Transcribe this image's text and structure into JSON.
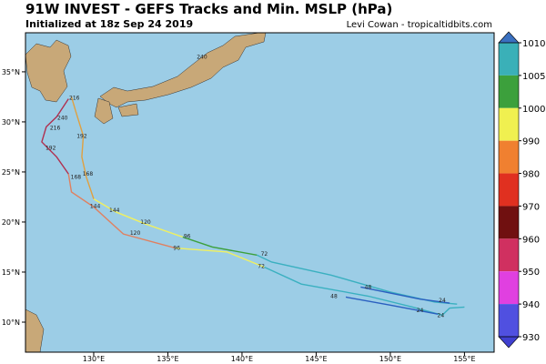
{
  "header": {
    "title": "91W INVEST - GEFS Tracks and Min. MSLP (hPa)",
    "subtitle": "Initialized at 18z Sep 24 2019",
    "credit": "Levi Cowan - tropicaltidbits.com"
  },
  "map": {
    "xlim": [
      125.4,
      157
    ],
    "ylim": [
      7,
      38.9
    ],
    "xticks": [
      {
        "value": 130,
        "label": "130°E"
      },
      {
        "value": 135,
        "label": "135°E"
      },
      {
        "value": 140,
        "label": "140°E"
      },
      {
        "value": 145,
        "label": "145°E"
      },
      {
        "value": 150,
        "label": "150°E"
      },
      {
        "value": 155,
        "label": "155°E"
      }
    ],
    "yticks": [
      {
        "value": 10,
        "label": "10°N"
      },
      {
        "value": 15,
        "label": "15°N"
      },
      {
        "value": 20,
        "label": "20°N"
      },
      {
        "value": 25,
        "label": "25°N"
      },
      {
        "value": 30,
        "label": "30°N"
      },
      {
        "value": 35,
        "label": "35°N"
      }
    ],
    "tracks": [
      {
        "segments": [
          {
            "color": "#3ab0c0",
            "lon": [
              154.5,
              153,
              150,
              146,
              142,
              141
            ],
            "lat": [
              11.8,
              12,
              13,
              14.7,
              16,
              16.7
            ]
          },
          {
            "color": "#2a5fc0",
            "lon": [
              154,
              152,
              150,
              148
            ],
            "lat": [
              11.9,
              12.3,
              12.9,
              13.5
            ]
          },
          {
            "color": "#3ca03c",
            "lon": [
              141,
              138,
              136
            ],
            "lat": [
              16.7,
              17.5,
              18.5
            ]
          },
          {
            "color": "#f0f060",
            "lon": [
              136,
              133.5,
              131.5,
              130
            ],
            "lat": [
              18.5,
              19.8,
              21,
              22.3
            ]
          },
          {
            "color": "#e0a040",
            "lon": [
              130,
              129.5,
              129.2,
              129.3,
              128.8,
              128.5
            ],
            "lat": [
              22.3,
              24.5,
              26.5,
              28.6,
              31,
              32.5
            ]
          }
        ]
      },
      {
        "segments": [
          {
            "color": "#3ab0c0",
            "lon": [
              155,
              154,
              153.5,
              151.5,
              148.5,
              144,
              141.5
            ],
            "lat": [
              11.5,
              11.4,
              10.7,
              11.5,
              12.6,
              13.8,
              15.5
            ]
          },
          {
            "color": "#2a5fc0",
            "lon": [
              153.2,
              150,
              147
            ],
            "lat": [
              10.8,
              11.7,
              12.5
            ]
          },
          {
            "color": "#f0f060",
            "lon": [
              141.5,
              139,
              135.5
            ],
            "lat": [
              15.5,
              17,
              17.4
            ]
          },
          {
            "color": "#e08060",
            "lon": [
              135.5,
              132,
              130,
              128.5,
              128.3
            ],
            "lat": [
              17.4,
              18.8,
              21.5,
              23,
              24.8
            ]
          },
          {
            "color": "#b03050",
            "lon": [
              128.3,
              127.5,
              126.5,
              126.8,
              127.5,
              128.3
            ],
            "lat": [
              24.8,
              26.5,
              28,
              29.5,
              30.5,
              32.3
            ]
          }
        ]
      }
    ],
    "hour_labels": [
      {
        "text": "24",
        "lon": 153.5,
        "lat": 12.2
      },
      {
        "text": "24",
        "lon": 153.4,
        "lat": 10.7
      },
      {
        "text": "24",
        "lon": 152,
        "lat": 11.2
      },
      {
        "text": "48",
        "lon": 148.5,
        "lat": 13.5
      },
      {
        "text": "48",
        "lon": 146.2,
        "lat": 12.6
      },
      {
        "text": "72",
        "lon": 141.5,
        "lat": 16.8
      },
      {
        "text": "72",
        "lon": 141.3,
        "lat": 15.6
      },
      {
        "text": "96",
        "lon": 136.3,
        "lat": 18.6
      },
      {
        "text": "96",
        "lon": 135.6,
        "lat": 17.4
      },
      {
        "text": "120",
        "lon": 133.5,
        "lat": 20
      },
      {
        "text": "120",
        "lon": 132.8,
        "lat": 18.9
      },
      {
        "text": "144",
        "lon": 131.4,
        "lat": 21.2
      },
      {
        "text": "144",
        "lon": 130.1,
        "lat": 21.6
      },
      {
        "text": "168",
        "lon": 129.6,
        "lat": 24.8
      },
      {
        "text": "168",
        "lon": 128.8,
        "lat": 24.5
      },
      {
        "text": "192",
        "lon": 129.2,
        "lat": 28.6
      },
      {
        "text": "192",
        "lon": 127.1,
        "lat": 27.4
      },
      {
        "text": "216",
        "lon": 127.4,
        "lat": 29.4
      },
      {
        "text": "216",
        "lon": 128.7,
        "lat": 32.4
      },
      {
        "text": "240",
        "lon": 127.9,
        "lat": 30.4
      },
      {
        "text": "240",
        "lon": 137.3,
        "lat": 36.5
      }
    ]
  },
  "colorbar": {
    "ticks": [
      1010,
      1005,
      1000,
      990,
      980,
      970,
      960,
      950,
      940,
      930
    ],
    "colors": [
      "#3ab0b8",
      "#3ca03c",
      "#f0f050",
      "#f08030",
      "#e03020",
      "#701010",
      "#d03060",
      "#e040e0",
      "#5050e0"
    ],
    "top_color": "#3a70c0",
    "bottom_color": "#4040d0"
  }
}
